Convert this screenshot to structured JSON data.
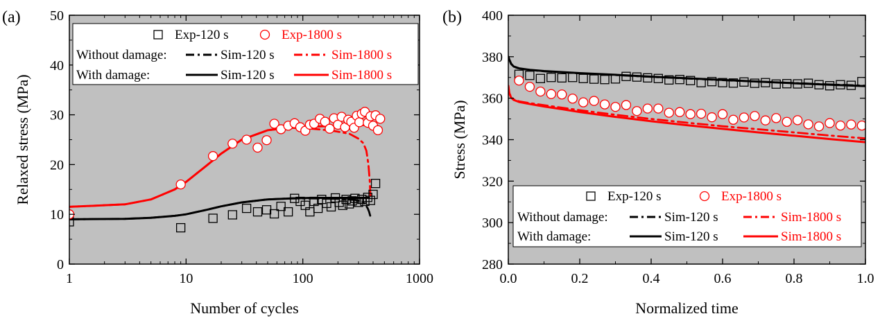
{
  "chart_data": [
    {
      "type": "scatter",
      "panel_label": "(a)",
      "xlabel": "Number of cycles",
      "ylabel": "Relaxed stress (MPa)",
      "xscale": "log",
      "xlim": [
        1,
        1000
      ],
      "ylim": [
        0,
        50
      ],
      "xticks": [
        1,
        10,
        100,
        1000
      ],
      "xtick_labels": [
        "1",
        "10",
        "100",
        "1000"
      ],
      "yticks": [
        0,
        10,
        20,
        30,
        40,
        50
      ],
      "ytick_labels": [
        "0",
        "10",
        "20",
        "30",
        "40",
        "50"
      ],
      "background": "#c0c0c0",
      "legend_position": "top",
      "legend": {
        "without_damage": "Without damage:",
        "with_damage": "With damage:"
      },
      "series": [
        {
          "name": "Exp-120 s",
          "style": "square",
          "color": "#000000",
          "x": [
            1,
            9,
            17,
            25,
            33,
            41,
            49,
            57,
            65,
            75,
            85,
            95,
            105,
            115,
            125,
            135,
            145,
            160,
            175,
            190,
            205,
            220,
            235,
            250,
            265,
            280,
            300,
            320,
            340,
            360,
            380,
            400,
            420
          ],
          "y": [
            8.5,
            7.3,
            9.2,
            9.9,
            11.2,
            10.5,
            10.9,
            10.1,
            11.6,
            10.5,
            13.2,
            12.6,
            11.8,
            10.5,
            12.6,
            11.2,
            13.0,
            12.2,
            11.5,
            13.3,
            12.4,
            11.8,
            13.0,
            12.1,
            12.7,
            13.2,
            12.4,
            13.0,
            12.6,
            13.4,
            12.8,
            14.0,
            16.2
          ]
        },
        {
          "name": "Exp-1800 s",
          "style": "circle",
          "color": "#ff0000",
          "x": [
            1,
            9,
            17,
            25,
            33,
            41,
            49,
            57,
            65,
            75,
            85,
            95,
            105,
            115,
            125,
            140,
            155,
            170,
            185,
            200,
            215,
            230,
            245,
            260,
            275,
            290,
            305,
            320,
            340,
            360,
            380,
            400,
            420,
            440,
            460
          ],
          "y": [
            10.0,
            16.0,
            21.7,
            24.2,
            25.0,
            23.4,
            24.9,
            28.2,
            27.1,
            27.8,
            28.3,
            27.5,
            26.8,
            28.0,
            28.2,
            29.2,
            28.6,
            27.2,
            29.3,
            28.0,
            29.6,
            27.5,
            29.0,
            28.6,
            27.4,
            29.8,
            28.5,
            30.2,
            30.6,
            28.4,
            29.7,
            27.8,
            29.9,
            26.9,
            29.2
          ]
        },
        {
          "name": "Sim-120 s",
          "group": "without_damage",
          "style": "dashdot",
          "color": "#000000",
          "x": [
            1,
            3,
            5,
            8,
            10,
            15,
            20,
            30,
            50,
            80,
            120,
            200,
            280,
            320,
            340,
            360,
            370,
            380
          ],
          "y": [
            9.0,
            9.1,
            9.3,
            9.7,
            10.0,
            10.9,
            11.6,
            12.4,
            13.0,
            13.2,
            13.2,
            13.1,
            12.9,
            12.6,
            12.1,
            11.2,
            10.5,
            9.5
          ]
        },
        {
          "name": "Sim-1800 s",
          "group": "without_damage",
          "style": "dashdot",
          "color": "#ff0000",
          "x": [
            1,
            3,
            5,
            8,
            10,
            15,
            20,
            30,
            50,
            80,
            120,
            180,
            250,
            300,
            330,
            350,
            365,
            375,
            380
          ],
          "y": [
            11.5,
            12.0,
            13.0,
            15.0,
            16.5,
            19.8,
            22.2,
            25.0,
            26.9,
            27.4,
            27.2,
            26.8,
            26.2,
            25.2,
            24.3,
            22.8,
            20.0,
            16.5,
            13.2
          ]
        },
        {
          "name": "Sim-120 s",
          "group": "with_damage",
          "style": "solid",
          "color": "#000000",
          "x": [
            1,
            3,
            5,
            8,
            10,
            15,
            20,
            30,
            50,
            80,
            120,
            200,
            300,
            370
          ],
          "y": [
            9.0,
            9.1,
            9.3,
            9.7,
            10.0,
            10.9,
            11.6,
            12.4,
            13.0,
            13.2,
            13.3,
            13.3,
            13.3,
            13.3
          ]
        },
        {
          "name": "Sim-1800 s",
          "group": "with_damage",
          "style": "solid",
          "color": "#ff0000",
          "x": [
            1,
            3,
            5,
            8,
            10,
            15,
            20,
            30,
            50,
            80,
            120,
            200,
            300,
            370
          ],
          "y": [
            11.5,
            12.0,
            13.0,
            15.0,
            16.5,
            19.8,
            22.2,
            25.0,
            26.9,
            27.5,
            27.6,
            27.8,
            27.9,
            28.0
          ]
        }
      ]
    },
    {
      "type": "scatter",
      "panel_label": "(b)",
      "xlabel": "Normalized time",
      "ylabel": "Stress (MPa)",
      "xlim": [
        0,
        1
      ],
      "ylim": [
        280,
        400
      ],
      "xticks": [
        0,
        0.2,
        0.4,
        0.6,
        0.8,
        1.0
      ],
      "xtick_labels": [
        "0.0",
        "0.2",
        "0.4",
        "0.6",
        "0.8",
        "1.0"
      ],
      "yticks": [
        280,
        300,
        320,
        340,
        360,
        380,
        400
      ],
      "ytick_labels": [
        "280",
        "300",
        "320",
        "340",
        "360",
        "380",
        "400"
      ],
      "background": "#c0c0c0",
      "legend_position": "bottom",
      "legend": {
        "without_damage": "Without damage:",
        "with_damage": "With damage:"
      },
      "series": [
        {
          "name": "Exp-120 s",
          "style": "square",
          "color": "#000000",
          "x": [
            0.03,
            0.06,
            0.09,
            0.12,
            0.15,
            0.18,
            0.21,
            0.24,
            0.27,
            0.3,
            0.33,
            0.36,
            0.39,
            0.42,
            0.45,
            0.48,
            0.51,
            0.54,
            0.57,
            0.6,
            0.63,
            0.66,
            0.69,
            0.72,
            0.75,
            0.78,
            0.81,
            0.84,
            0.87,
            0.9,
            0.93,
            0.96,
            0.99
          ],
          "y": [
            371.5,
            371.0,
            369.5,
            370.0,
            369.8,
            370.0,
            369.5,
            369.2,
            369.0,
            369.3,
            370.5,
            370.2,
            369.8,
            369.5,
            368.8,
            369.0,
            368.5,
            367.5,
            368.0,
            367.5,
            367.3,
            367.8,
            367.2,
            367.5,
            366.8,
            367.0,
            366.9,
            367.2,
            366.5,
            366.0,
            366.5,
            366.2,
            368.0
          ]
        },
        {
          "name": "Exp-1800 s",
          "style": "circle",
          "color": "#ff0000",
          "x": [
            0.03,
            0.06,
            0.09,
            0.12,
            0.15,
            0.18,
            0.21,
            0.24,
            0.27,
            0.3,
            0.33,
            0.36,
            0.39,
            0.42,
            0.45,
            0.48,
            0.51,
            0.54,
            0.57,
            0.6,
            0.63,
            0.66,
            0.69,
            0.72,
            0.75,
            0.78,
            0.81,
            0.84,
            0.87,
            0.9,
            0.93,
            0.96,
            0.99
          ],
          "y": [
            368.5,
            365.5,
            363.2,
            362.0,
            361.8,
            359.8,
            358.0,
            358.7,
            357.0,
            355.8,
            356.7,
            353.8,
            355.0,
            355.0,
            353.0,
            353.3,
            352.3,
            352.5,
            350.8,
            352.3,
            349.6,
            350.7,
            351.4,
            349.3,
            350.4,
            348.6,
            349.4,
            347.4,
            346.4,
            348.0,
            346.8,
            347.3,
            346.8
          ]
        },
        {
          "name": "Sim-120 s",
          "group": "without_damage",
          "style": "dashdot",
          "color": "#000000",
          "x": [
            0.0,
            0.003,
            0.008,
            0.015,
            0.03,
            0.06,
            0.1,
            0.15,
            0.2,
            0.3,
            0.4,
            0.5,
            0.6,
            0.7,
            0.8,
            0.9,
            1.0
          ],
          "y": [
            380,
            378.5,
            376.5,
            375.2,
            374.3,
            373.6,
            373.0,
            372.5,
            372.0,
            371.2,
            370.3,
            369.5,
            368.7,
            368.0,
            367.3,
            366.6,
            366.0
          ]
        },
        {
          "name": "Sim-1800 s",
          "group": "without_damage",
          "style": "dashdot",
          "color": "#ff0000",
          "x": [
            0.0,
            0.003,
            0.008,
            0.015,
            0.03,
            0.06,
            0.1,
            0.15,
            0.2,
            0.3,
            0.4,
            0.5,
            0.6,
            0.7,
            0.8,
            0.9,
            1.0
          ],
          "y": [
            366,
            362.5,
            360.5,
            359.5,
            358.5,
            357.6,
            356.6,
            355.4,
            354.2,
            352.0,
            350.0,
            348.2,
            346.5,
            345.0,
            343.5,
            342.0,
            340.6
          ]
        },
        {
          "name": "Sim-120 s",
          "group": "with_damage",
          "style": "solid",
          "color": "#000000",
          "x": [
            0.0,
            0.003,
            0.008,
            0.015,
            0.03,
            0.06,
            0.1,
            0.15,
            0.2,
            0.3,
            0.4,
            0.5,
            0.6,
            0.7,
            0.8,
            0.9,
            1.0
          ],
          "y": [
            380,
            378.6,
            376.6,
            375.3,
            374.4,
            373.7,
            373.1,
            372.6,
            372.1,
            371.3,
            370.4,
            369.6,
            368.8,
            368.0,
            367.2,
            366.5,
            365.8
          ]
        },
        {
          "name": "Sim-1800 s",
          "group": "with_damage",
          "style": "solid",
          "color": "#ff0000",
          "x": [
            0.0,
            0.003,
            0.008,
            0.015,
            0.03,
            0.06,
            0.1,
            0.15,
            0.2,
            0.3,
            0.4,
            0.5,
            0.6,
            0.7,
            0.8,
            0.9,
            1.0
          ],
          "y": [
            366,
            362.3,
            360.3,
            359.2,
            358.2,
            357.2,
            356.0,
            354.7,
            353.3,
            351.0,
            348.9,
            347.0,
            345.2,
            343.5,
            341.9,
            340.3,
            338.8
          ]
        }
      ]
    }
  ]
}
